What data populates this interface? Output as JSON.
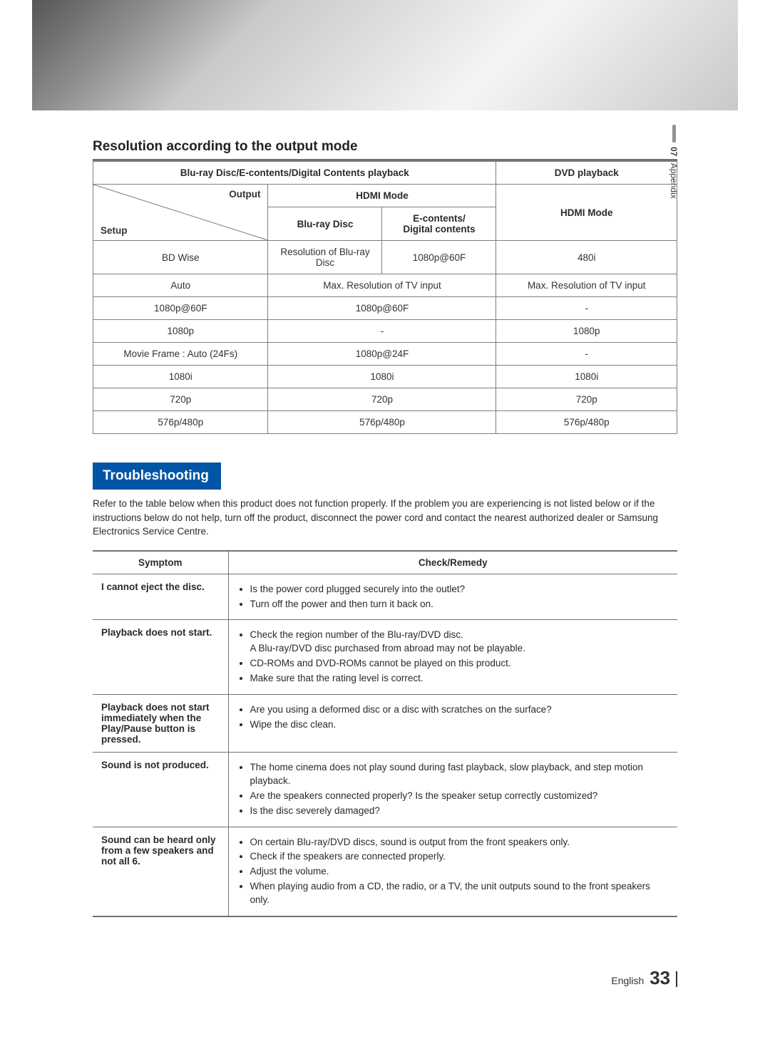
{
  "sideTab": {
    "number": "07",
    "label": "Appendix"
  },
  "sectionTitle": "Resolution according to the output mode",
  "resTable": {
    "header": {
      "bluray_group": "Blu-ray Disc/E-contents/Digital Contents playback",
      "dvd_group": "DVD playback",
      "output": "Output",
      "setup": "Setup",
      "hdmi_mode": "HDMI Mode",
      "bluray_disc": "Blu-ray Disc",
      "econtents": "E-contents/\nDigital contents",
      "dvd_hdmi": "HDMI Mode"
    },
    "rows": [
      {
        "setup": "BD Wise",
        "bluray": "Resolution of Blu-ray\nDisc",
        "econtents": "1080p@60F",
        "dvd": "480i"
      },
      {
        "setup": "Auto",
        "bluray_merged": "Max. Resolution of TV input",
        "dvd": "Max. Resolution of TV input"
      },
      {
        "setup": "1080p@60F",
        "bluray_merged": "1080p@60F",
        "dvd": "-"
      },
      {
        "setup": "1080p",
        "bluray_merged": "-",
        "dvd": "1080p"
      },
      {
        "setup": "Movie Frame : Auto (24Fs)",
        "bluray_merged": "1080p@24F",
        "dvd": "-"
      },
      {
        "setup": "1080i",
        "bluray_merged": "1080i",
        "dvd": "1080i"
      },
      {
        "setup": "720p",
        "bluray_merged": "720p",
        "dvd": "720p"
      },
      {
        "setup": "576p/480p",
        "bluray_merged": "576p/480p",
        "dvd": "576p/480p"
      }
    ]
  },
  "troubleshooting": {
    "heading": "Troubleshooting",
    "intro": "Refer to the table below when this product does not function properly. If the problem you are experiencing is not listed below or if the instructions below do not help, turn off the product, disconnect the power cord and contact the nearest authorized dealer or Samsung Electronics Service Centre.",
    "columns": {
      "symptom": "Symptom",
      "remedy": "Check/Remedy"
    },
    "rows": [
      {
        "symptom": "I cannot eject the disc.",
        "items": [
          "Is the power cord plugged securely into the outlet?",
          "Turn off the power and then turn it back on."
        ]
      },
      {
        "symptom": "Playback does not start.",
        "items": [
          "Check the region number of the Blu-ray/DVD disc.\nA Blu-ray/DVD disc purchased from abroad may not be playable.",
          "CD-ROMs and DVD-ROMs cannot be played on this product.",
          "Make sure that the rating level is correct."
        ]
      },
      {
        "symptom": "Playback does not start immediately when the Play/Pause button is pressed.",
        "items": [
          "Are you using a deformed disc or a disc with scratches on the surface?",
          "Wipe the disc clean."
        ]
      },
      {
        "symptom": "Sound is not produced.",
        "items": [
          "The home cinema does not play sound during fast playback, slow playback, and step motion playback.",
          "Are the speakers connected properly? Is the speaker setup correctly customized?",
          "Is the disc severely damaged?"
        ]
      },
      {
        "symptom": "Sound can be heard only from a few speakers and not all 6.",
        "items": [
          "On certain Blu-ray/DVD discs, sound is output from the front speakers only.",
          "Check if the speakers are connected properly.",
          "Adjust the volume.",
          "When playing audio from a CD, the radio, or a TV, the unit outputs sound to the front speakers only."
        ]
      }
    ]
  },
  "footer": {
    "lang": "English",
    "page": "33"
  }
}
